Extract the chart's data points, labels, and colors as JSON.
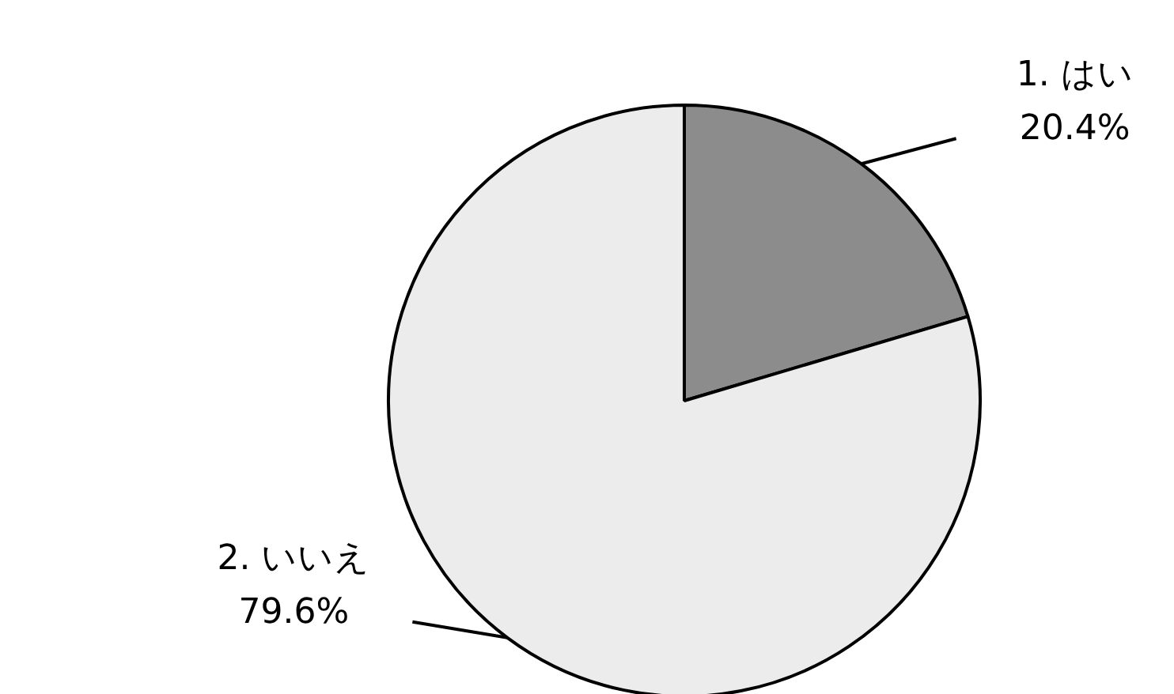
{
  "chart_data": {
    "type": "pie",
    "categories": [
      "1. はい",
      "2. いいえ"
    ],
    "values": [
      20.4,
      79.6
    ],
    "colors": [
      "#8c8c8c",
      "#ececec"
    ],
    "value_labels": [
      "20.4%",
      "79.6%"
    ]
  }
}
